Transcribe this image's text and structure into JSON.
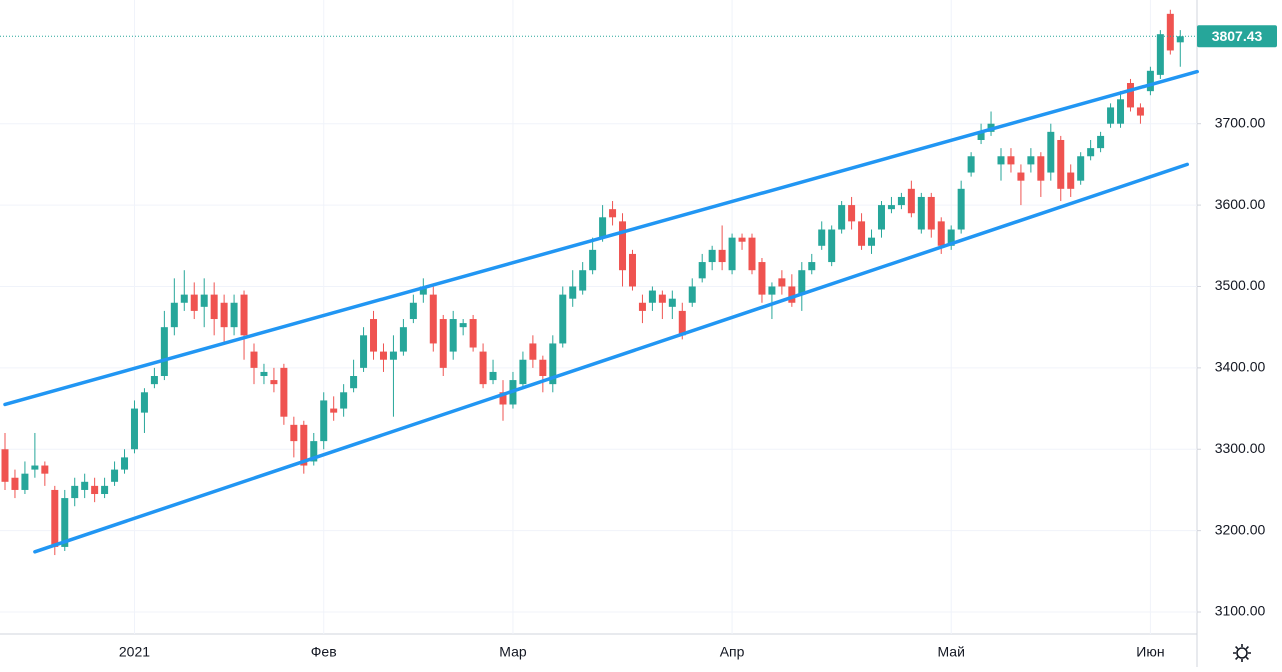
{
  "chart_data": {
    "type": "candlestick",
    "categories": [
      null,
      null,
      null,
      null,
      null,
      null,
      null,
      null,
      null,
      null,
      null,
      null,
      null,
      "2021",
      null,
      null,
      null,
      null,
      null,
      null,
      null,
      null,
      null,
      null,
      null,
      null,
      null,
      null,
      null,
      null,
      null,
      null,
      "Фев",
      null,
      null,
      null,
      null,
      null,
      null,
      null,
      null,
      null,
      null,
      null,
      null,
      null,
      null,
      null,
      null,
      null,
      null,
      "Мар",
      null,
      null,
      null,
      null,
      null,
      null,
      null,
      null,
      null,
      null,
      null,
      null,
      null,
      null,
      null,
      null,
      null,
      null,
      null,
      null,
      null,
      "Апр",
      null,
      null,
      null,
      null,
      null,
      null,
      null,
      null,
      null,
      null,
      null,
      null,
      null,
      null,
      null,
      null,
      null,
      null,
      null,
      null,
      null,
      "Май",
      null,
      null,
      null,
      null,
      null,
      null,
      null,
      null,
      null,
      null,
      null,
      null,
      null,
      null,
      null,
      null,
      null,
      null,
      null,
      "Июн",
      null,
      null,
      null
    ],
    "open": [
      3300,
      3265,
      3250,
      3275,
      3280,
      3250,
      3180,
      3240,
      3250,
      3255,
      3245,
      3260,
      3275,
      3300,
      3345,
      3380,
      3390,
      3450,
      3480,
      3490,
      3475,
      3490,
      3480,
      3450,
      3490,
      3420,
      3390,
      3385,
      3400,
      3330,
      3330,
      3285,
      3310,
      3350,
      3350,
      3375,
      3400,
      3460,
      3420,
      3410,
      3420,
      3460,
      3490,
      3490,
      3460,
      3420,
      3450,
      3460,
      3420,
      3385,
      3370,
      3355,
      3380,
      3430,
      3410,
      3380,
      3430,
      3485,
      3495,
      3520,
      3560,
      3595,
      3580,
      3540,
      3480,
      3480,
      3490,
      3475,
      3470,
      3480,
      3510,
      3530,
      3545,
      3520,
      3560,
      3560,
      3530,
      3490,
      3510,
      3500,
      3490,
      3520,
      3550,
      3530,
      3570,
      3600,
      3580,
      3550,
      3570,
      3595,
      3600,
      3620,
      3570,
      3610,
      3580,
      3550,
      3570,
      3640,
      3680,
      3690,
      3650,
      3660,
      3640,
      3650,
      3660,
      3640,
      3680,
      3640,
      3630,
      3660,
      3670,
      3700,
      3700,
      3750,
      3720,
      3740,
      3760,
      3835,
      3800
    ],
    "high": [
      3320,
      3275,
      3285,
      3320,
      3285,
      3255,
      3250,
      3265,
      3270,
      3265,
      3265,
      3285,
      3300,
      3360,
      3375,
      3400,
      3470,
      3510,
      3520,
      3505,
      3510,
      3505,
      3490,
      3490,
      3495,
      3430,
      3405,
      3400,
      3405,
      3340,
      3335,
      3320,
      3370,
      3365,
      3380,
      3410,
      3450,
      3470,
      3430,
      3440,
      3460,
      3490,
      3510,
      3500,
      3465,
      3470,
      3460,
      3465,
      3430,
      3410,
      3385,
      3395,
      3420,
      3440,
      3415,
      3440,
      3500,
      3520,
      3530,
      3560,
      3600,
      3605,
      3590,
      3545,
      3490,
      3500,
      3495,
      3495,
      3480,
      3510,
      3540,
      3550,
      3575,
      3565,
      3565,
      3565,
      3535,
      3505,
      3520,
      3515,
      3530,
      3540,
      3580,
      3575,
      3605,
      3610,
      3590,
      3570,
      3605,
      3610,
      3615,
      3630,
      3615,
      3615,
      3585,
      3575,
      3630,
      3665,
      3700,
      3715,
      3670,
      3670,
      3650,
      3670,
      3665,
      3700,
      3685,
      3650,
      3665,
      3680,
      3690,
      3725,
      3740,
      3755,
      3725,
      3770,
      3815,
      3840,
      3815
    ],
    "low": [
      3250,
      3240,
      3245,
      3265,
      3255,
      3170,
      3175,
      3230,
      3240,
      3235,
      3240,
      3255,
      3270,
      3295,
      3320,
      3375,
      3385,
      3440,
      3470,
      3460,
      3450,
      3440,
      3430,
      3440,
      3410,
      3380,
      3380,
      3370,
      3330,
      3290,
      3270,
      3280,
      3300,
      3335,
      3340,
      3370,
      3395,
      3410,
      3395,
      3340,
      3415,
      3455,
      3480,
      3420,
      3390,
      3410,
      3440,
      3420,
      3375,
      3380,
      3335,
      3350,
      3375,
      3400,
      3370,
      3370,
      3425,
      3475,
      3490,
      3515,
      3555,
      3575,
      3500,
      3495,
      3455,
      3470,
      3460,
      3460,
      3435,
      3475,
      3505,
      3520,
      3520,
      3515,
      3545,
      3515,
      3480,
      3460,
      3490,
      3475,
      3470,
      3515,
      3545,
      3525,
      3565,
      3570,
      3545,
      3540,
      3560,
      3590,
      3595,
      3585,
      3565,
      3560,
      3540,
      3545,
      3565,
      3635,
      3675,
      3685,
      3630,
      3640,
      3600,
      3640,
      3610,
      3630,
      3605,
      3610,
      3625,
      3655,
      3665,
      3695,
      3695,
      3715,
      3700,
      3735,
      3755,
      3785,
      3770
    ],
    "close": [
      3260,
      3250,
      3270,
      3280,
      3270,
      3180,
      3240,
      3255,
      3260,
      3245,
      3255,
      3275,
      3290,
      3350,
      3370,
      3390,
      3450,
      3480,
      3490,
      3470,
      3490,
      3460,
      3450,
      3480,
      3440,
      3400,
      3395,
      3380,
      3340,
      3310,
      3280,
      3310,
      3360,
      3345,
      3370,
      3390,
      3440,
      3420,
      3410,
      3420,
      3450,
      3480,
      3500,
      3430,
      3400,
      3460,
      3455,
      3425,
      3380,
      3395,
      3355,
      3385,
      3410,
      3410,
      3390,
      3430,
      3490,
      3500,
      3520,
      3545,
      3585,
      3585,
      3520,
      3500,
      3470,
      3495,
      3480,
      3485,
      3440,
      3500,
      3530,
      3545,
      3530,
      3560,
      3555,
      3520,
      3490,
      3500,
      3500,
      3480,
      3520,
      3530,
      3570,
      3570,
      3600,
      3580,
      3550,
      3560,
      3600,
      3600,
      3610,
      3590,
      3610,
      3570,
      3550,
      3570,
      3620,
      3660,
      3690,
      3700,
      3660,
      3650,
      3630,
      3660,
      3630,
      3690,
      3620,
      3620,
      3660,
      3670,
      3685,
      3720,
      3730,
      3720,
      3710,
      3765,
      3810,
      3790,
      3807.43
    ],
    "up_color": "#26a69a",
    "down_color": "#ef5350",
    "line_color": "#2196f3",
    "channel_lines": [
      {
        "x": [
          0,
          119.7
        ],
        "values": [
          3355,
          3764
        ]
      },
      {
        "x": [
          3,
          118.7
        ],
        "values": [
          3174,
          3650
        ]
      }
    ],
    "ylim": [
      3073,
      3852
    ],
    "yticks": [
      {
        "value": 3100,
        "label": "3100.00"
      },
      {
        "value": 3200,
        "label": "3200.00"
      },
      {
        "value": 3300,
        "label": "3300.00"
      },
      {
        "value": 3400,
        "label": "3400.00"
      },
      {
        "value": 3500,
        "label": "3500.00"
      },
      {
        "value": 3600,
        "label": "3600.00"
      },
      {
        "value": 3700,
        "label": "3700.00"
      }
    ],
    "grid": true
  }
}
